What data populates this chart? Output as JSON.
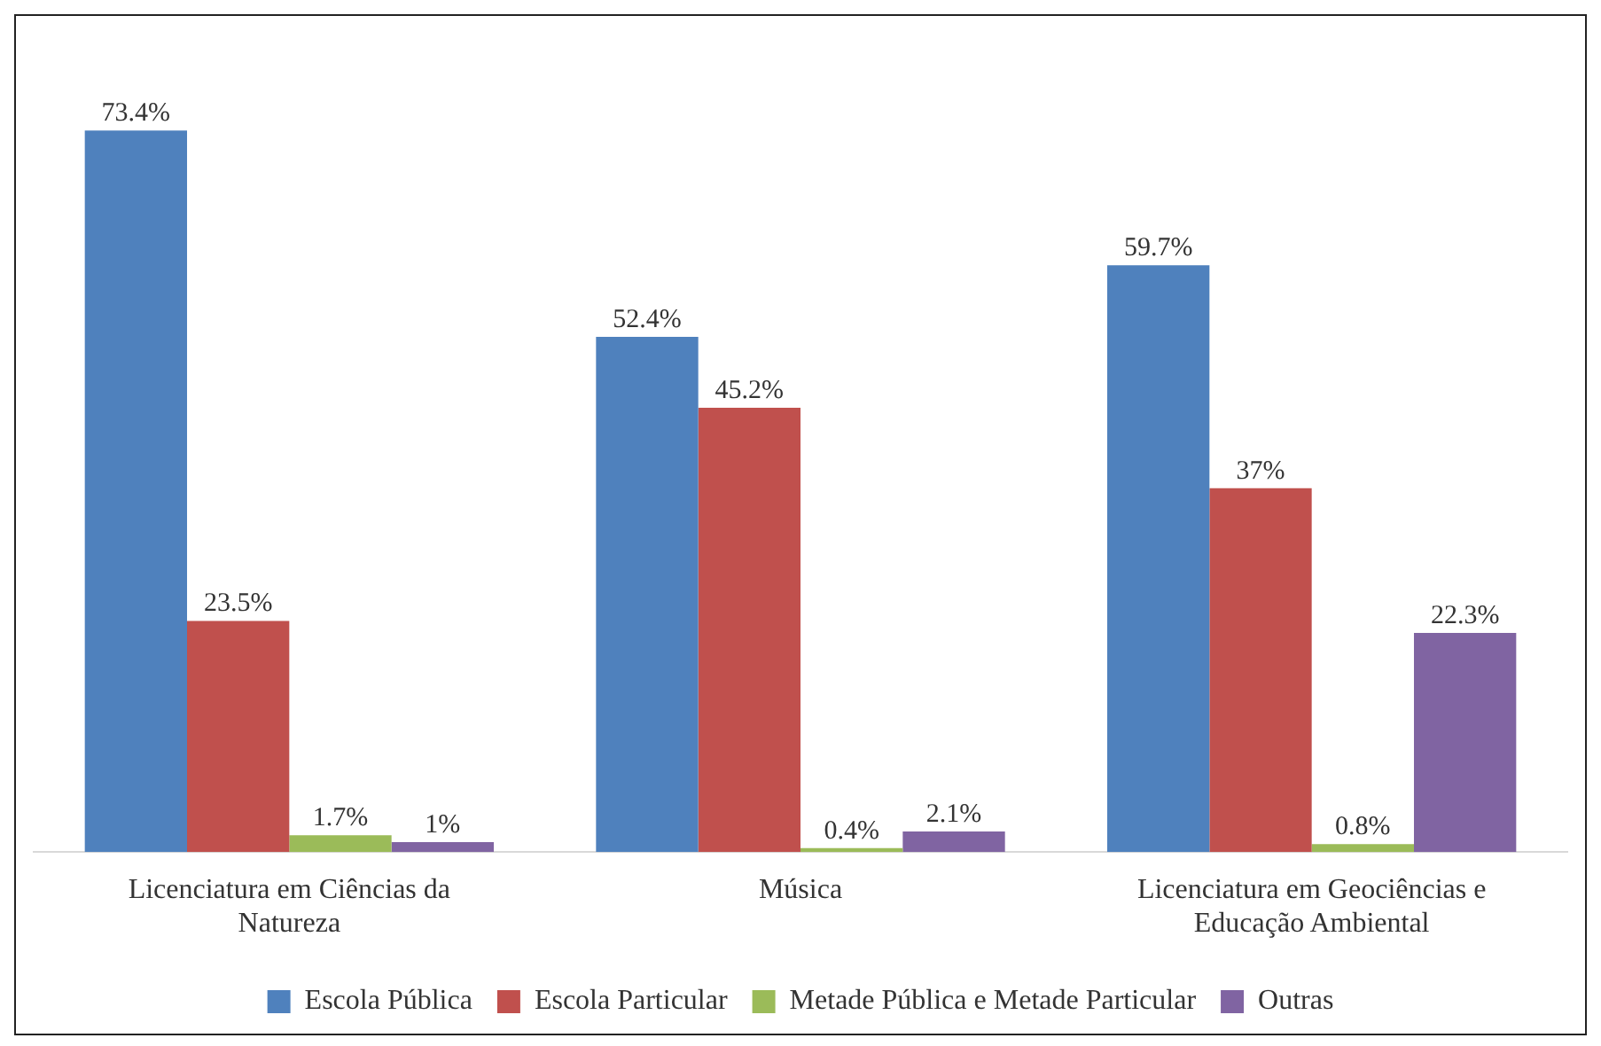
{
  "chart_data": {
    "type": "bar",
    "categories": [
      "Licenciatura em Ciências da Natureza",
      "Música",
      "Licenciatura em Geociências e Educação Ambiental"
    ],
    "series": [
      {
        "name": "Escola Pública",
        "color": "#4f81bd",
        "values": [
          73.4,
          52.4,
          59.7
        ],
        "value_labels": [
          "73.4%",
          "52.4%",
          "59.7%"
        ]
      },
      {
        "name": "Escola Particular",
        "color": "#c0504d",
        "values": [
          23.5,
          45.2,
          37
        ],
        "value_labels": [
          "23.5%",
          "45.2%",
          "37%"
        ]
      },
      {
        "name": "Metade Pública e Metade Particular",
        "color": "#9bbb59",
        "values": [
          1.7,
          0.4,
          0.8
        ],
        "value_labels": [
          "1.7%",
          "0.4%",
          "0.8%"
        ]
      },
      {
        "name": "Outras",
        "color": "#8064a2",
        "values": [
          1,
          2.1,
          22.3
        ],
        "value_labels": [
          "1%",
          "2.1%",
          "22.3%"
        ]
      }
    ],
    "grid": false,
    "legend": "bottom"
  }
}
